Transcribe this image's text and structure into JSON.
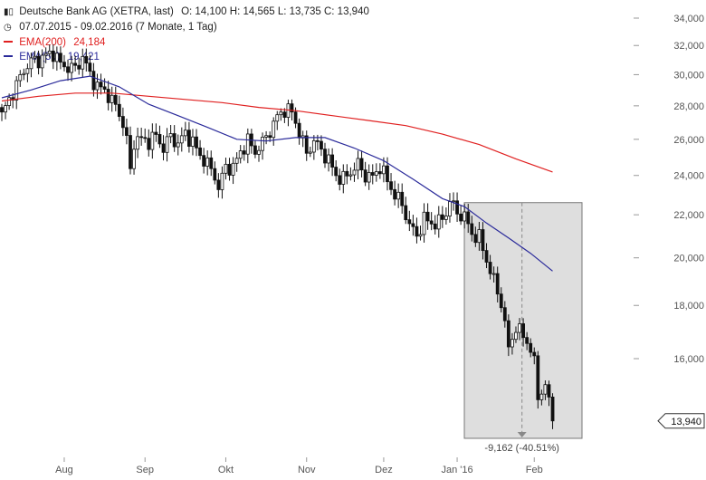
{
  "legend": {
    "title": "Deutsche Bank AG (XETRA, last)",
    "ohlc": "O: 14,100   H: 14,565   L: 13,735   C: 13,940",
    "period": "07.07.2015 - 09.02.2016 (7 Monate, 1 Tag)",
    "ema200_label": "EMA(200)",
    "ema200_value": "24,184",
    "ema50_label": "EMA(50)",
    "ema50_value": "19,421",
    "ema200_color": "#e02020",
    "ema50_color": "#2a2a9a"
  },
  "last_price_tag": "13,940",
  "range_annotation": "-9,162 (-40.51%)",
  "chart_data": {
    "type": "candlestick",
    "title": "Deutsche Bank AG (XETRA, last)",
    "xlabel": "",
    "ylabel": "",
    "y_scale": "log",
    "ylim": [
      12800,
      34500
    ],
    "y_ticks": [
      {
        "value": 34000,
        "label": "34,000"
      },
      {
        "value": 32000,
        "label": "32,000"
      },
      {
        "value": 30000,
        "label": "30,000"
      },
      {
        "value": 28000,
        "label": "28,000"
      },
      {
        "value": 26000,
        "label": "26,000"
      },
      {
        "value": 24000,
        "label": "24,000"
      },
      {
        "value": 22000,
        "label": "22,000"
      },
      {
        "value": 20000,
        "label": "20,000"
      },
      {
        "value": 18000,
        "label": "18,000"
      },
      {
        "value": 16000,
        "label": "16,000"
      }
    ],
    "x_ticks": [
      "Aug",
      "Sep",
      "Okt",
      "Nov",
      "Dez",
      "Jan '16",
      "Feb"
    ],
    "x_tick_days": [
      17,
      39,
      61,
      83,
      104,
      124,
      145
    ],
    "close_path": [
      [
        0,
        27.4
      ],
      [
        2,
        28.4
      ],
      [
        4,
        29.3
      ],
      [
        6,
        30.3
      ],
      [
        8,
        30.9
      ],
      [
        10,
        31.0
      ],
      [
        12,
        31.3
      ],
      [
        14,
        31.5
      ],
      [
        16,
        30.7
      ],
      [
        18,
        30.5
      ],
      [
        20,
        30.4
      ],
      [
        22,
        31.2
      ],
      [
        24,
        30.0
      ],
      [
        26,
        29.2
      ],
      [
        28,
        29.0
      ],
      [
        30,
        28.3
      ],
      [
        32,
        27.6
      ],
      [
        34,
        26.0
      ],
      [
        35,
        24.2
      ],
      [
        36,
        25.9
      ],
      [
        38,
        26.0
      ],
      [
        40,
        25.9
      ],
      [
        42,
        26.2
      ],
      [
        44,
        25.5
      ],
      [
        46,
        26.2
      ],
      [
        48,
        25.7
      ],
      [
        50,
        26.4
      ],
      [
        52,
        25.8
      ],
      [
        54,
        25.1
      ],
      [
        56,
        24.6
      ],
      [
        58,
        24.0
      ],
      [
        59,
        23.3
      ],
      [
        61,
        24.5
      ],
      [
        63,
        24.4
      ],
      [
        65,
        25.3
      ],
      [
        67,
        25.9
      ],
      [
        69,
        25.3
      ],
      [
        71,
        25.8
      ],
      [
        73,
        26.5
      ],
      [
        75,
        27.3
      ],
      [
        77,
        27.8
      ],
      [
        79,
        27.6
      ],
      [
        81,
        26.4
      ],
      [
        83,
        25.2
      ],
      [
        85,
        25.9
      ],
      [
        87,
        25.4
      ],
      [
        89,
        24.8
      ],
      [
        91,
        24.0
      ],
      [
        93,
        23.8
      ],
      [
        95,
        24.2
      ],
      [
        97,
        24.6
      ],
      [
        99,
        24.0
      ],
      [
        101,
        23.9
      ],
      [
        103,
        24.5
      ],
      [
        105,
        23.7
      ],
      [
        107,
        23.0
      ],
      [
        109,
        22.5
      ],
      [
        111,
        21.5
      ],
      [
        113,
        21.0
      ],
      [
        115,
        21.8
      ],
      [
        117,
        21.6
      ],
      [
        119,
        21.6
      ],
      [
        121,
        22.1
      ],
      [
        122,
        22.7
      ],
      [
        124,
        22.1
      ],
      [
        126,
        21.9
      ],
      [
        128,
        21.1
      ],
      [
        130,
        20.9
      ],
      [
        132,
        19.9
      ],
      [
        134,
        19.0
      ],
      [
        136,
        18.1
      ],
      [
        137,
        17.3
      ],
      [
        138,
        16.3
      ],
      [
        140,
        17.2
      ],
      [
        142,
        16.8
      ],
      [
        144,
        16.4
      ],
      [
        145,
        15.8
      ],
      [
        146,
        14.7
      ],
      [
        148,
        15.1
      ],
      [
        150,
        13.94
      ]
    ],
    "series": [
      {
        "name": "EMA(200)",
        "values": [
          [
            0,
            28.3
          ],
          [
            10,
            28.6
          ],
          [
            20,
            28.8
          ],
          [
            30,
            28.8
          ],
          [
            40,
            28.6
          ],
          [
            50,
            28.4
          ],
          [
            60,
            28.2
          ],
          [
            70,
            27.9
          ],
          [
            80,
            27.7
          ],
          [
            90,
            27.4
          ],
          [
            100,
            27.1
          ],
          [
            110,
            26.8
          ],
          [
            120,
            26.3
          ],
          [
            130,
            25.7
          ],
          [
            140,
            24.9
          ],
          [
            150,
            24.184
          ]
        ]
      },
      {
        "name": "EMA(50)",
        "values": [
          [
            0,
            28.5
          ],
          [
            8,
            29.0
          ],
          [
            16,
            29.6
          ],
          [
            24,
            29.9
          ],
          [
            32,
            29.2
          ],
          [
            40,
            28.1
          ],
          [
            48,
            27.4
          ],
          [
            56,
            26.7
          ],
          [
            64,
            26.0
          ],
          [
            72,
            25.9
          ],
          [
            80,
            26.1
          ],
          [
            88,
            26.1
          ],
          [
            96,
            25.5
          ],
          [
            104,
            24.8
          ],
          [
            112,
            23.8
          ],
          [
            120,
            22.8
          ],
          [
            126,
            22.4
          ],
          [
            132,
            21.6
          ],
          [
            138,
            20.9
          ],
          [
            144,
            20.2
          ],
          [
            150,
            19.421
          ]
        ]
      }
    ],
    "last_close": 13940,
    "range_box": {
      "from_day": 123,
      "to_day": 158,
      "high": 22600,
      "low": 13400,
      "change": "-9,162 (-40.51%)"
    }
  }
}
